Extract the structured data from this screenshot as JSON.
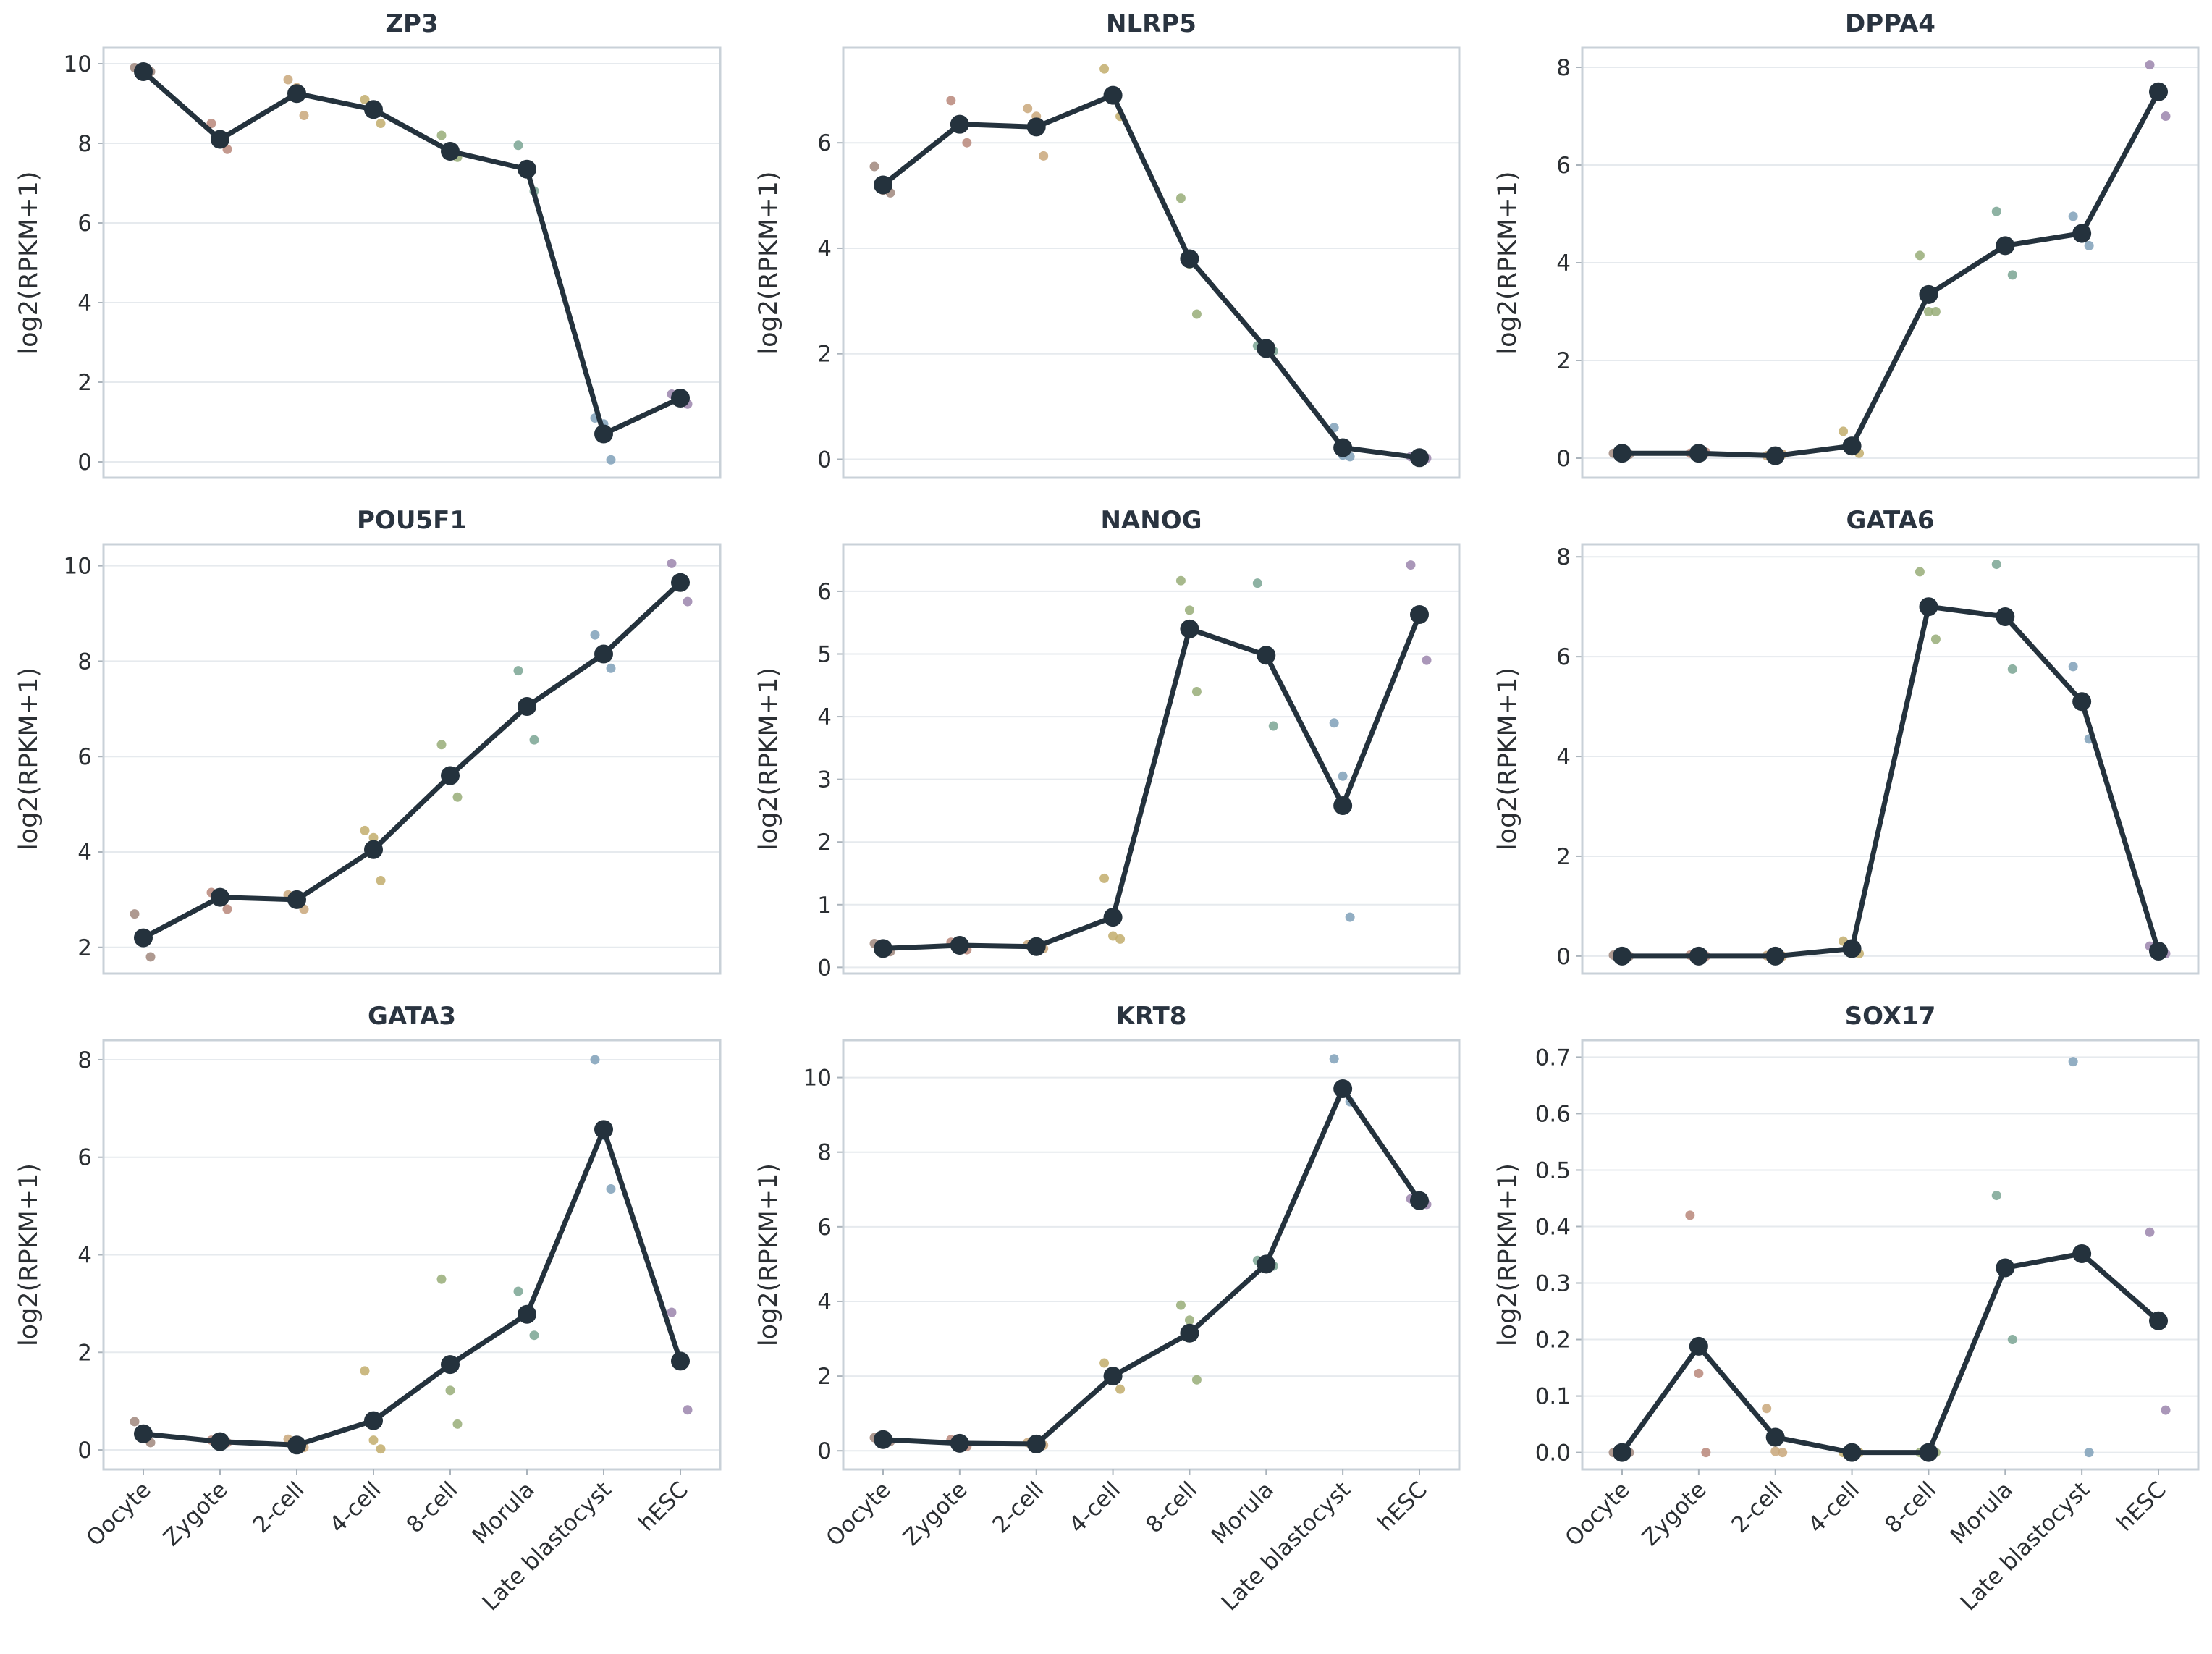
{
  "figure": {
    "y_label": "log2(RPKM+1)",
    "stages": [
      "Oocyte",
      "Zygote",
      "2-cell",
      "4-cell",
      "8-cell",
      "Morula",
      "Late blastocyst",
      "hESC"
    ],
    "stage_colors": [
      "#a0877c",
      "#b8877a",
      "#c9a77a",
      "#c2ad6c",
      "#98ad78",
      "#7aa493",
      "#7fa0b8",
      "#9b85ad"
    ],
    "mean_color": "#24323d"
  },
  "chart_data": [
    {
      "type": "line",
      "title": "ZP3",
      "xlabel": "",
      "ylabel": "log2(RPKM+1)",
      "ylim": [
        -0.4,
        10.4
      ],
      "yticks": [
        0,
        2,
        4,
        6,
        8,
        10
      ],
      "ytick_labels": [
        "0",
        "2",
        "4",
        "6",
        "8",
        "10"
      ],
      "grid": true,
      "categories": [
        "Oocyte",
        "Zygote",
        "2-cell",
        "4-cell",
        "8-cell",
        "Morula",
        "Late blastocyst",
        "hESC"
      ],
      "mean": [
        9.8,
        8.1,
        9.25,
        8.85,
        7.8,
        7.35,
        0.7,
        1.6
      ],
      "replicates": [
        [
          9.9,
          9.8,
          9.7
        ],
        [
          8.5,
          7.85,
          8.1
        ],
        [
          9.6,
          8.7,
          9.4
        ],
        [
          9.1,
          8.5,
          8.9
        ],
        [
          8.2,
          7.65,
          7.7
        ],
        [
          7.95,
          6.8,
          7.3
        ],
        [
          1.1,
          0.05,
          0.95
        ],
        [
          1.7,
          1.45,
          1.65
        ]
      ]
    },
    {
      "type": "line",
      "title": "NLRP5",
      "xlabel": "",
      "ylabel": "log2(RPKM+1)",
      "ylim": [
        -0.35,
        7.8
      ],
      "yticks": [
        0,
        2,
        4,
        6
      ],
      "ytick_labels": [
        "0",
        "2",
        "4",
        "6"
      ],
      "grid": true,
      "categories": [
        "Oocyte",
        "Zygote",
        "2-cell",
        "4-cell",
        "8-cell",
        "Morula",
        "Late blastocyst",
        "hESC"
      ],
      "mean": [
        5.2,
        6.35,
        6.3,
        6.9,
        3.8,
        2.1,
        0.22,
        0.03
      ],
      "replicates": [
        [
          5.55,
          5.05,
          5.1
        ],
        [
          6.8,
          6.0,
          6.3
        ],
        [
          6.65,
          5.75,
          6.5
        ],
        [
          7.4,
          6.5,
          6.85
        ],
        [
          4.95,
          2.75,
          3.7
        ],
        [
          2.15,
          2.05,
          2.1
        ],
        [
          0.6,
          0.05,
          0.08
        ],
        [
          0.05,
          0.02,
          0.04
        ]
      ]
    },
    {
      "type": "line",
      "title": "DPPA4",
      "xlabel": "",
      "ylabel": "log2(RPKM+1)",
      "ylim": [
        -0.4,
        8.4
      ],
      "yticks": [
        0,
        2,
        4,
        6,
        8
      ],
      "ytick_labels": [
        "0",
        "2",
        "4",
        "6",
        "8"
      ],
      "grid": true,
      "categories": [
        "Oocyte",
        "Zygote",
        "2-cell",
        "4-cell",
        "8-cell",
        "Morula",
        "Late blastocyst",
        "hESC"
      ],
      "mean": [
        0.1,
        0.1,
        0.05,
        0.25,
        3.35,
        4.35,
        4.6,
        7.5
      ],
      "replicates": [
        [
          0.1,
          0.08,
          0.12
        ],
        [
          0.1,
          0.12,
          0.08
        ],
        [
          0.05,
          0.08,
          0.03
        ],
        [
          0.55,
          0.1,
          0.15
        ],
        [
          4.15,
          3.0,
          3.0
        ],
        [
          5.05,
          3.75,
          4.3
        ],
        [
          4.95,
          4.35,
          4.5
        ],
        [
          8.05,
          7.0,
          7.4
        ]
      ]
    },
    {
      "type": "line",
      "title": "POU5F1",
      "xlabel": "",
      "ylabel": "log2(RPKM+1)",
      "ylim": [
        1.45,
        10.45
      ],
      "yticks": [
        2,
        4,
        6,
        8,
        10
      ],
      "ytick_labels": [
        "2",
        "4",
        "6",
        "8",
        "10"
      ],
      "grid": true,
      "categories": [
        "Oocyte",
        "Zygote",
        "2-cell",
        "4-cell",
        "8-cell",
        "Morula",
        "Late blastocyst",
        "hESC"
      ],
      "mean": [
        2.2,
        3.05,
        3.0,
        4.05,
        5.6,
        7.05,
        8.15,
        9.65
      ],
      "replicates": [
        [
          2.7,
          1.8,
          2.15
        ],
        [
          3.15,
          2.8,
          3.1
        ],
        [
          3.1,
          2.8,
          3.05
        ],
        [
          4.45,
          3.4,
          4.3
        ],
        [
          6.25,
          5.15,
          5.55
        ],
        [
          7.8,
          6.35,
          7.0
        ],
        [
          8.55,
          7.85,
          8.1
        ],
        [
          10.05,
          9.25,
          9.6
        ]
      ]
    },
    {
      "type": "line",
      "title": "NANOG",
      "xlabel": "",
      "ylabel": "log2(RPKM+1)",
      "ylim": [
        -0.1,
        6.75
      ],
      "yticks": [
        0,
        1,
        2,
        3,
        4,
        5,
        6
      ],
      "ytick_labels": [
        "0",
        "1",
        "2",
        "3",
        "4",
        "5",
        "6"
      ],
      "grid": true,
      "categories": [
        "Oocyte",
        "Zygote",
        "2-cell",
        "4-cell",
        "8-cell",
        "Morula",
        "Late blastocyst",
        "hESC"
      ],
      "mean": [
        0.3,
        0.35,
        0.33,
        0.8,
        5.4,
        4.98,
        2.58,
        5.63
      ],
      "replicates": [
        [
          0.38,
          0.25,
          0.3
        ],
        [
          0.4,
          0.28,
          0.35
        ],
        [
          0.36,
          0.3,
          0.33
        ],
        [
          1.42,
          0.45,
          0.5
        ],
        [
          6.17,
          4.4,
          5.7
        ],
        [
          6.13,
          3.85,
          4.95
        ],
        [
          3.9,
          0.8,
          3.05
        ],
        [
          6.42,
          4.9,
          5.6
        ]
      ]
    },
    {
      "type": "line",
      "title": "GATA6",
      "xlabel": "",
      "ylabel": "log2(RPKM+1)",
      "ylim": [
        -0.35,
        8.25
      ],
      "yticks": [
        0,
        2,
        4,
        6,
        8
      ],
      "ytick_labels": [
        "0",
        "2",
        "4",
        "6",
        "8"
      ],
      "grid": true,
      "categories": [
        "Oocyte",
        "Zygote",
        "2-cell",
        "4-cell",
        "8-cell",
        "Morula",
        "Late blastocyst",
        "hESC"
      ],
      "mean": [
        0.0,
        0.0,
        0.0,
        0.15,
        7.0,
        6.8,
        5.1,
        0.1
      ],
      "replicates": [
        [
          0.02,
          0.0,
          0.01
        ],
        [
          0.02,
          0.0,
          0.01
        ],
        [
          0.01,
          0.0,
          0.02
        ],
        [
          0.3,
          0.05,
          0.1
        ],
        [
          7.7,
          6.35,
          6.95
        ],
        [
          7.85,
          5.75,
          6.8
        ],
        [
          5.8,
          4.35,
          5.15
        ],
        [
          0.2,
          0.05,
          0.1
        ]
      ]
    },
    {
      "type": "line",
      "title": "GATA3",
      "xlabel": "",
      "ylabel": "log2(RPKM+1)",
      "ylim": [
        -0.4,
        8.4
      ],
      "yticks": [
        0,
        2,
        4,
        6,
        8
      ],
      "ytick_labels": [
        "0",
        "2",
        "4",
        "6",
        "8"
      ],
      "grid": true,
      "categories": [
        "Oocyte",
        "Zygote",
        "2-cell",
        "4-cell",
        "8-cell",
        "Morula",
        "Late blastocyst",
        "hESC"
      ],
      "mean": [
        0.33,
        0.17,
        0.1,
        0.6,
        1.75,
        2.78,
        6.57,
        1.82
      ],
      "replicates": [
        [
          0.58,
          0.15,
          0.3
        ],
        [
          0.2,
          0.15,
          0.17
        ],
        [
          0.22,
          0.05,
          0.1
        ],
        [
          1.62,
          0.02,
          0.2
        ],
        [
          3.5,
          0.53,
          1.22
        ],
        [
          3.25,
          2.35,
          2.75
        ],
        [
          8.0,
          5.35,
          6.45
        ],
        [
          2.82,
          0.82,
          1.85
        ]
      ]
    },
    {
      "type": "line",
      "title": "KRT8",
      "xlabel": "",
      "ylabel": "log2(RPKM+1)",
      "ylim": [
        -0.5,
        11.0
      ],
      "yticks": [
        0,
        2,
        4,
        6,
        8,
        10
      ],
      "ytick_labels": [
        "0",
        "2",
        "4",
        "6",
        "8",
        "10"
      ],
      "grid": true,
      "categories": [
        "Oocyte",
        "Zygote",
        "2-cell",
        "4-cell",
        "8-cell",
        "Morula",
        "Late blastocyst",
        "hESC"
      ],
      "mean": [
        0.3,
        0.2,
        0.18,
        2.0,
        3.15,
        5.0,
        9.7,
        6.7
      ],
      "replicates": [
        [
          0.35,
          0.25,
          0.3
        ],
        [
          0.3,
          0.12,
          0.2
        ],
        [
          0.22,
          0.15,
          0.18
        ],
        [
          2.35,
          1.65,
          2.0
        ],
        [
          3.9,
          1.9,
          3.5
        ],
        [
          5.1,
          4.95,
          5.0
        ],
        [
          10.5,
          9.35,
          9.7
        ],
        [
          6.75,
          6.6,
          6.7
        ]
      ]
    },
    {
      "type": "line",
      "title": "SOX17",
      "xlabel": "",
      "ylabel": "log2(RPKM+1)",
      "ylim": [
        -0.03,
        0.73
      ],
      "yticks": [
        0.0,
        0.1,
        0.2,
        0.3,
        0.4,
        0.5,
        0.6,
        0.7
      ],
      "ytick_labels": [
        "0.0",
        "0.1",
        "0.2",
        "0.3",
        "0.4",
        "0.5",
        "0.6",
        "0.7"
      ],
      "grid": true,
      "categories": [
        "Oocyte",
        "Zygote",
        "2-cell",
        "4-cell",
        "8-cell",
        "Morula",
        "Late blastocyst",
        "hESC"
      ],
      "mean": [
        0.0,
        0.188,
        0.027,
        0.0,
        0.0,
        0.327,
        0.352,
        0.233
      ],
      "replicates": [
        [
          0.0,
          0.0,
          0.0
        ],
        [
          0.42,
          0.0,
          0.14
        ],
        [
          0.078,
          0.0,
          0.002
        ],
        [
          0.0,
          0.0,
          0.0
        ],
        [
          0.0,
          0.0,
          0.0
        ],
        [
          0.455,
          0.2,
          0.33
        ],
        [
          0.692,
          0.0,
          0.36
        ],
        [
          0.39,
          0.075,
          0.235
        ]
      ]
    }
  ]
}
